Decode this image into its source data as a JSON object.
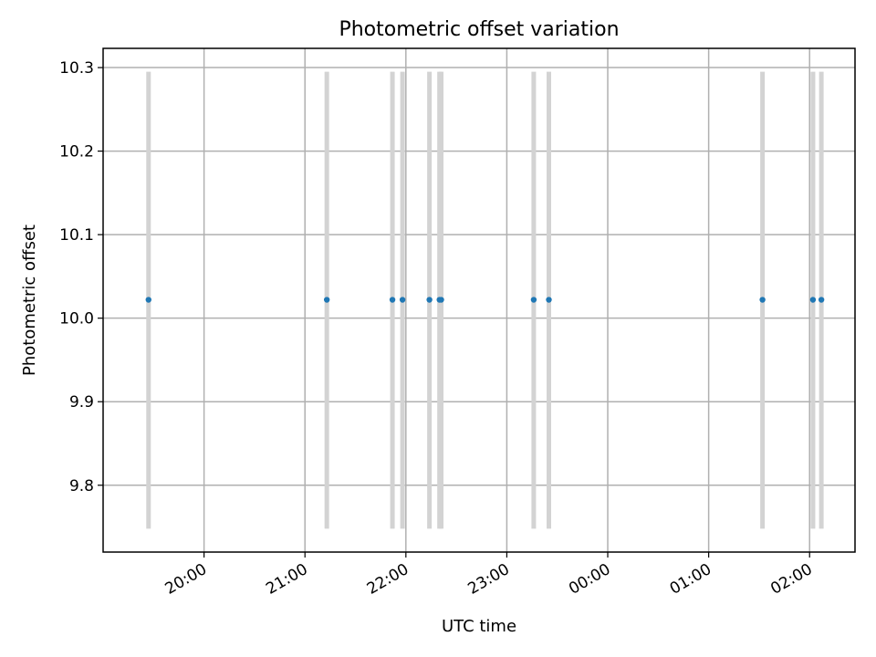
{
  "chart_data": {
    "type": "scatter",
    "title": "Photometric offset variation",
    "xlabel": "UTC time",
    "ylabel": "Photometric offset",
    "x_tick_labels": [
      "20:00",
      "21:00",
      "22:00",
      "23:00",
      "00:00",
      "01:00",
      "02:00"
    ],
    "y_tick_labels": [
      "9.8",
      "9.9",
      "10.0",
      "10.1",
      "10.2",
      "10.3"
    ],
    "y_ticks": [
      9.8,
      9.9,
      10.0,
      10.1,
      10.2,
      10.3
    ],
    "xlim_hours_since_2000": [
      19.0,
      26.45
    ],
    "ylim": [
      9.72,
      10.323
    ],
    "grid": true,
    "series": [
      {
        "x_times": [
          "19:27",
          "21:13",
          "21:52",
          "21:58",
          "22:14",
          "22:20",
          "22:21",
          "23:16",
          "23:25",
          "01:32",
          "02:02",
          "02:07"
        ],
        "y": [
          10.022,
          10.022,
          10.022,
          10.022,
          10.022,
          10.022,
          10.022,
          10.022,
          10.022,
          10.022,
          10.022,
          10.022
        ],
        "error_low": [
          9.748,
          9.748,
          9.748,
          9.748,
          9.748,
          9.748,
          9.748,
          9.748,
          9.748,
          9.748,
          9.748,
          9.748
        ],
        "error_high": [
          10.295,
          10.295,
          10.295,
          10.295,
          10.295,
          10.295,
          10.295,
          10.295,
          10.295,
          10.295,
          10.295,
          10.295
        ],
        "color": "#1f77b4",
        "error_color": "#d3d3d3"
      }
    ]
  }
}
